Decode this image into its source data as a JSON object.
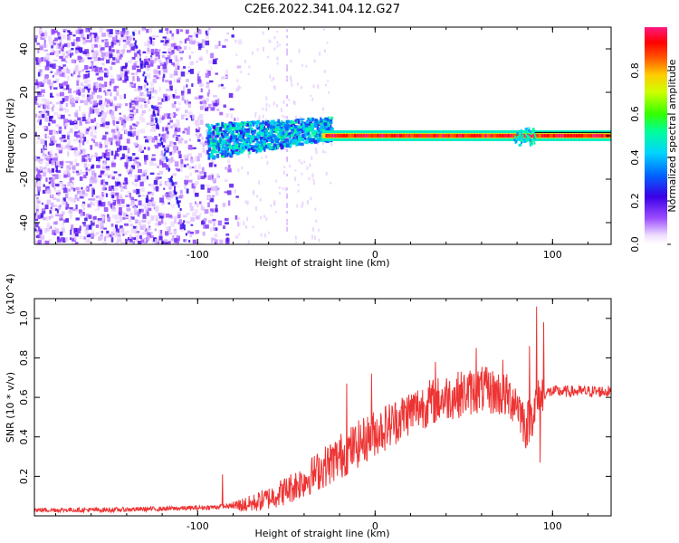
{
  "figure_title": "C2E6.2022.341.04.12.G27",
  "chart_data": [
    {
      "type": "heatmap",
      "title": "C2E6.2022.341.04.12.G27",
      "xlabel": "Height of straight line (km)",
      "ylabel": "Frequency (Hz)",
      "xlim": [
        -192,
        133
      ],
      "ylim": [
        -50,
        50
      ],
      "x_ticks": [
        -100,
        0,
        100
      ],
      "x_tick_labels": [
        "-100",
        "0",
        "100"
      ],
      "y_ticks": [
        -40,
        -20,
        0,
        20,
        40
      ],
      "y_tick_labels": [
        "-40",
        "-20",
        "0",
        "20",
        "40"
      ],
      "colorbar": {
        "label": "Normalized spectral amplitude",
        "range": [
          0,
          1
        ],
        "ticks": [
          0.0,
          0.2,
          0.4,
          0.6,
          0.8
        ],
        "tick_labels": [
          "0.0",
          "0.2",
          "0.4",
          "0.6",
          "0.8"
        ],
        "colormap": "rainbow (white → violet → blue → cyan → green → yellow → orange → red → pink)"
      },
      "regions": [
        {
          "x_range": [
            -192,
            -80
          ],
          "description": "broadband scattered noise, amplitude ~0.05–0.2"
        },
        {
          "x_range": [
            -95,
            -30
          ],
          "description": "signal emerging near 0 Hz, frequency spread ±8 Hz, drifting upward, amplitude ~0.2–0.5"
        },
        {
          "x_range": [
            -30,
            133
          ],
          "description": "strong narrow carrier at 0 Hz, amplitude ~0.8–1.0"
        }
      ],
      "grid": false
    },
    {
      "type": "line",
      "xlabel": "Height of straight line (km)",
      "ylabel": "SNR (10 * v/v)",
      "y_multiplier": "(x10^4)",
      "xlim": [
        -192,
        133
      ],
      "ylim": [
        0,
        1.1
      ],
      "x_ticks": [
        -100,
        0,
        100
      ],
      "x_tick_labels": [
        "-100",
        "0",
        "100"
      ],
      "y_ticks": [
        0.2,
        0.4,
        0.6,
        0.8,
        1.0
      ],
      "y_tick_labels": [
        "0.2",
        "0.4",
        "0.6",
        "0.8",
        "1.0"
      ],
      "color": "#ee3333",
      "series": [
        {
          "x": [
            -192,
            -150,
            -100,
            -80,
            -70,
            -60,
            -50,
            -40,
            -30,
            -20,
            -10,
            0,
            10,
            20,
            30,
            40,
            50,
            60,
            70,
            80,
            85,
            90,
            95,
            100,
            110,
            120,
            133
          ],
          "y": [
            0.03,
            0.03,
            0.04,
            0.05,
            0.06,
            0.09,
            0.13,
            0.18,
            0.24,
            0.3,
            0.36,
            0.42,
            0.47,
            0.53,
            0.57,
            0.6,
            0.62,
            0.64,
            0.62,
            0.58,
            0.45,
            0.55,
            0.62,
            0.63,
            0.63,
            0.63,
            0.63
          ]
        }
      ],
      "spikes": [
        {
          "x": -86,
          "y": 0.21
        },
        {
          "x": -16,
          "y": 0.67
        },
        {
          "x": -2,
          "y": 0.72
        },
        {
          "x": 34,
          "y": 0.78
        },
        {
          "x": 57,
          "y": 0.85
        },
        {
          "x": 72,
          "y": 0.79
        },
        {
          "x": 87,
          "y": 0.86
        },
        {
          "x": 91,
          "y": 1.06
        },
        {
          "x": 93,
          "y": 0.27
        },
        {
          "x": 95,
          "y": 0.98
        }
      ],
      "grid": false
    }
  ]
}
